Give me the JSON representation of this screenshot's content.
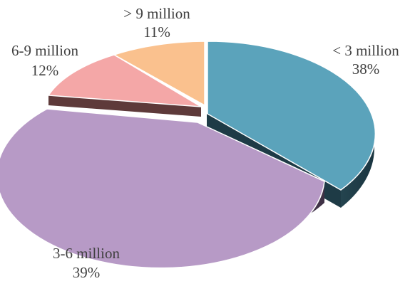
{
  "chart_data": {
    "type": "pie",
    "style": "3d-exploded",
    "slices": [
      {
        "label": "< 3 million",
        "value": 38,
        "pct_text": "38%",
        "color": "#5ba3bb",
        "side": "#1f3f4b"
      },
      {
        "label": "3-6 million",
        "value": 39,
        "pct_text": "39%",
        "color": "#b79ac6",
        "side": "#4a3a53"
      },
      {
        "label": "6-9 million",
        "value": 12,
        "pct_text": "12%",
        "color": "#f4a7a7",
        "side": "#6b3f3f"
      },
      {
        "label": "> 9 million",
        "value": 11,
        "pct_text": "11%",
        "color": "#fac18e",
        "side": "#7a5533"
      }
    ]
  }
}
